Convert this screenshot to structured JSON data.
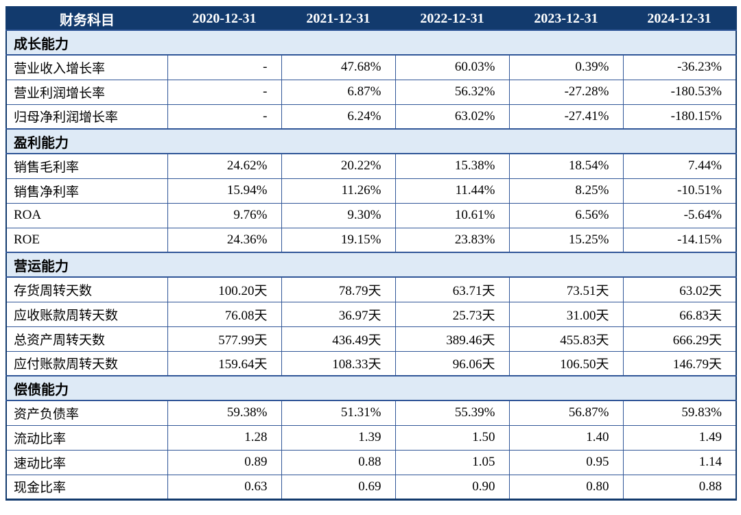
{
  "colors": {
    "header_bg": "#123a6d",
    "header_text": "#ffffff",
    "section_bg": "#deeaf6",
    "inner_border": "#2f5597",
    "outer_border": "#123a6d",
    "body_text": "#000000"
  },
  "table": {
    "header": {
      "account_column": "财务科目",
      "date_columns": [
        "2020-12-31",
        "2021-12-31",
        "2022-12-31",
        "2023-12-31",
        "2024-12-31"
      ]
    },
    "sections": [
      {
        "title": "成长能力",
        "rows": [
          {
            "label": "营业收入增长率",
            "values": [
              "-",
              "47.68%",
              "60.03%",
              "0.39%",
              "-36.23%"
            ]
          },
          {
            "label": "营业利润增长率",
            "values": [
              "-",
              "6.87%",
              "56.32%",
              "-27.28%",
              "-180.53%"
            ]
          },
          {
            "label": "归母净利润增长率",
            "values": [
              "-",
              "6.24%",
              "63.02%",
              "-27.41%",
              "-180.15%"
            ]
          }
        ]
      },
      {
        "title": "盈利能力",
        "rows": [
          {
            "label": "销售毛利率",
            "values": [
              "24.62%",
              "20.22%",
              "15.38%",
              "18.54%",
              "7.44%"
            ]
          },
          {
            "label": "销售净利率",
            "values": [
              "15.94%",
              "11.26%",
              "11.44%",
              "8.25%",
              "-10.51%"
            ]
          },
          {
            "label": "ROA",
            "values": [
              "9.76%",
              "9.30%",
              "10.61%",
              "6.56%",
              "-5.64%"
            ]
          },
          {
            "label": "ROE",
            "values": [
              "24.36%",
              "19.15%",
              "23.83%",
              "15.25%",
              "-14.15%"
            ]
          }
        ]
      },
      {
        "title": "营运能力",
        "rows": [
          {
            "label": "存货周转天数",
            "values": [
              "100.20天",
              "78.79天",
              "63.71天",
              "73.51天",
              "63.02天"
            ]
          },
          {
            "label": "应收账款周转天数",
            "values": [
              "76.08天",
              "36.97天",
              "25.73天",
              "31.00天",
              "66.83天"
            ]
          },
          {
            "label": "总资产周转天数",
            "values": [
              "577.99天",
              "436.49天",
              "389.46天",
              "455.83天",
              "666.29天"
            ]
          },
          {
            "label": "应付账款周转天数",
            "values": [
              "159.64天",
              "108.33天",
              "96.06天",
              "106.50天",
              "146.79天"
            ]
          }
        ]
      },
      {
        "title": "偿债能力",
        "rows": [
          {
            "label": "资产负债率",
            "values": [
              "59.38%",
              "51.31%",
              "55.39%",
              "56.87%",
              "59.83%"
            ]
          },
          {
            "label": "流动比率",
            "values": [
              "1.28",
              "1.39",
              "1.50",
              "1.40",
              "1.49"
            ]
          },
          {
            "label": "速动比率",
            "values": [
              "0.89",
              "0.88",
              "1.05",
              "0.95",
              "1.14"
            ]
          },
          {
            "label": "现金比率",
            "values": [
              "0.63",
              "0.69",
              "0.90",
              "0.80",
              "0.88"
            ]
          }
        ]
      }
    ]
  }
}
